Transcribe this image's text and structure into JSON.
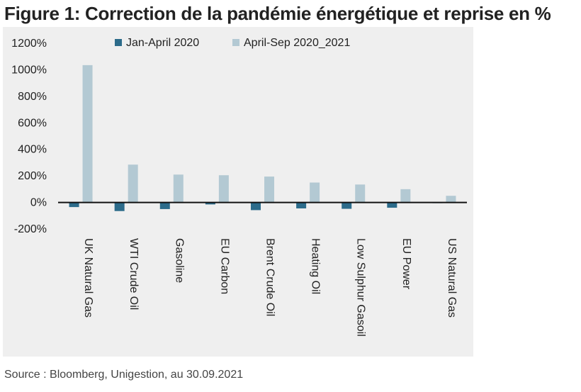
{
  "title": "Figure 1: Correction de la pandémie énergétique et reprise en %",
  "source": "Source : Bloomberg, Unigestion, au 30.09.2021",
  "colors": {
    "series1": "#2c6b8a",
    "series2": "#b3c9d3",
    "panel": "#efefef",
    "zero_line": "#111111"
  },
  "chart_data": {
    "type": "bar",
    "categories": [
      "UK Natural Gas",
      "WTI Crude Oil",
      "Gasoline",
      "EU Carbon",
      "Brent Crude Oil",
      "Heating Oil",
      "Low Sulphur Gasoil",
      "EU Power",
      "US Natural Gas"
    ],
    "series": [
      {
        "name": "Jan-April 2020",
        "values": [
          -35,
          -65,
          -50,
          -15,
          -58,
          -45,
          -48,
          -40,
          -5
        ]
      },
      {
        "name": "April-Sep 2020_2021",
        "values": [
          1035,
          285,
          210,
          205,
          195,
          150,
          135,
          100,
          50
        ]
      }
    ],
    "ylim": [
      -200,
      1200
    ],
    "yticks": [
      1200,
      1000,
      800,
      600,
      400,
      200,
      0,
      -200
    ],
    "ytick_labels": [
      "1200%",
      "1000%",
      "800%",
      "600%",
      "400%",
      "200%",
      "0%",
      "-200%"
    ],
    "legend_position": "top",
    "grid": false
  }
}
